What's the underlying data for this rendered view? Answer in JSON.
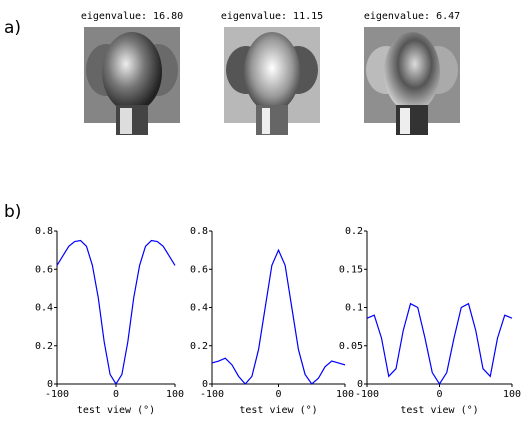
{
  "panel_labels": [
    "a)",
    "b)"
  ],
  "eigenfaces": [
    "eigenvalue: 16.80",
    "eigenvalue: 11.15",
    "eigenvalue: 6.47"
  ],
  "chart_data": [
    {
      "type": "line",
      "xlabel": "test view (°)",
      "x": [
        -100,
        -90,
        -80,
        -70,
        -60,
        -50,
        -40,
        -30,
        -20,
        -10,
        0,
        10,
        20,
        30,
        40,
        50,
        60,
        70,
        80,
        90,
        100
      ],
      "series": [
        {
          "color": "#0000ff",
          "values": [
            0.62,
            0.67,
            0.72,
            0.745,
            0.75,
            0.72,
            0.62,
            0.45,
            0.22,
            0.05,
            0.0,
            0.05,
            0.22,
            0.45,
            0.62,
            0.72,
            0.75,
            0.745,
            0.72,
            0.67,
            0.62
          ]
        }
      ],
      "xlim": [
        -100,
        100
      ],
      "xticks": [
        -100,
        0,
        100
      ],
      "ylim": [
        0,
        0.8
      ],
      "yticks": [
        0,
        0.2,
        0.4,
        0.6,
        0.8
      ]
    },
    {
      "type": "line",
      "xlabel": "test view (°)",
      "x": [
        -100,
        -90,
        -80,
        -70,
        -60,
        -50,
        -40,
        -30,
        -20,
        -10,
        0,
        10,
        20,
        30,
        40,
        50,
        60,
        70,
        80,
        90,
        100
      ],
      "series": [
        {
          "color": "#0000ff",
          "values": [
            0.11,
            0.12,
            0.135,
            0.1,
            0.04,
            0.0,
            0.04,
            0.18,
            0.4,
            0.62,
            0.7,
            0.62,
            0.4,
            0.18,
            0.05,
            0.0,
            0.03,
            0.09,
            0.12,
            0.11,
            0.1
          ]
        }
      ],
      "xlim": [
        -100,
        100
      ],
      "xticks": [
        -100,
        0,
        100
      ],
      "ylim": [
        0,
        0.8
      ],
      "yticks": [
        0,
        0.2,
        0.4,
        0.6,
        0.8
      ]
    },
    {
      "type": "line",
      "xlabel": "test view (°)",
      "x": [
        -100,
        -90,
        -80,
        -70,
        -60,
        -50,
        -40,
        -30,
        -20,
        -10,
        0,
        10,
        20,
        30,
        40,
        50,
        60,
        70,
        80,
        90,
        100
      ],
      "series": [
        {
          "color": "#0000ff",
          "values": [
            0.086,
            0.09,
            0.06,
            0.01,
            0.02,
            0.07,
            0.105,
            0.1,
            0.06,
            0.015,
            0.0,
            0.015,
            0.06,
            0.1,
            0.105,
            0.07,
            0.02,
            0.01,
            0.06,
            0.09,
            0.086
          ]
        }
      ],
      "xlim": [
        -100,
        100
      ],
      "xticks": [
        -100,
        0,
        100
      ],
      "ylim": [
        0,
        0.2
      ],
      "yticks": [
        0,
        0.05,
        0.1,
        0.15,
        0.2
      ]
    }
  ]
}
